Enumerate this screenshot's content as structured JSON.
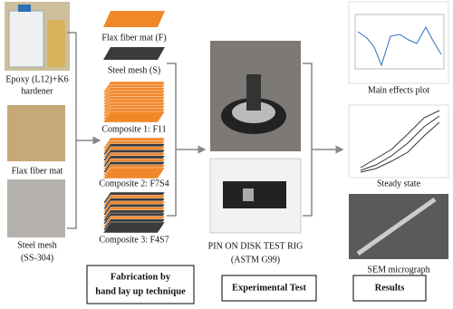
{
  "inputs": {
    "epoxy": [
      "Epoxy (L12)+K6",
      "hardener"
    ],
    "flax": [
      "Flax fiber mat"
    ],
    "steel": [
      "Steel mesh",
      "(SS-304)"
    ]
  },
  "layers": {
    "flax": "Flax fiber mat (F)",
    "steel": "Steel mesh (S)",
    "composite1": "Composite 1: F11",
    "composite2": "Composite 2: F7S4",
    "composite3": "Composite 3: F4S7"
  },
  "test": {
    "rig": [
      "PIN ON DISK TEST RIG",
      "(ASTM G99)"
    ]
  },
  "results": {
    "main": "Main effects plot",
    "steady": "Steady state",
    "sem": "SEM micrograph"
  },
  "stages": {
    "fabrication": [
      "Fabrication by",
      "hand lay up technique"
    ],
    "experimental": "Experimental Test",
    "results": "Results"
  }
}
